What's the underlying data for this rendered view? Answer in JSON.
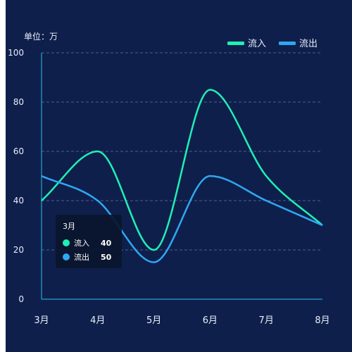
{
  "unit_label": "单位：万",
  "chart_data": {
    "type": "line",
    "smooth": true,
    "categories": [
      "3月",
      "4月",
      "5月",
      "6月",
      "7月",
      "8月"
    ],
    "series": [
      {
        "name": "流入",
        "values": [
          40,
          60,
          20,
          85,
          50,
          30
        ],
        "color": "#1ff0b5"
      },
      {
        "name": "流出",
        "values": [
          50,
          40,
          15,
          50,
          40,
          30
        ],
        "color": "#2fa8f2"
      }
    ],
    "ylim": [
      0,
      100
    ],
    "yticks": [
      0,
      20,
      40,
      60,
      80,
      100
    ],
    "grid": true,
    "legend": "top-right"
  },
  "tooltip": {
    "title": "3月",
    "items": [
      {
        "name": "流入",
        "value": "40",
        "color": "#1ff0b5"
      },
      {
        "name": "流出",
        "value": "50",
        "color": "#2fa8f2"
      }
    ]
  }
}
